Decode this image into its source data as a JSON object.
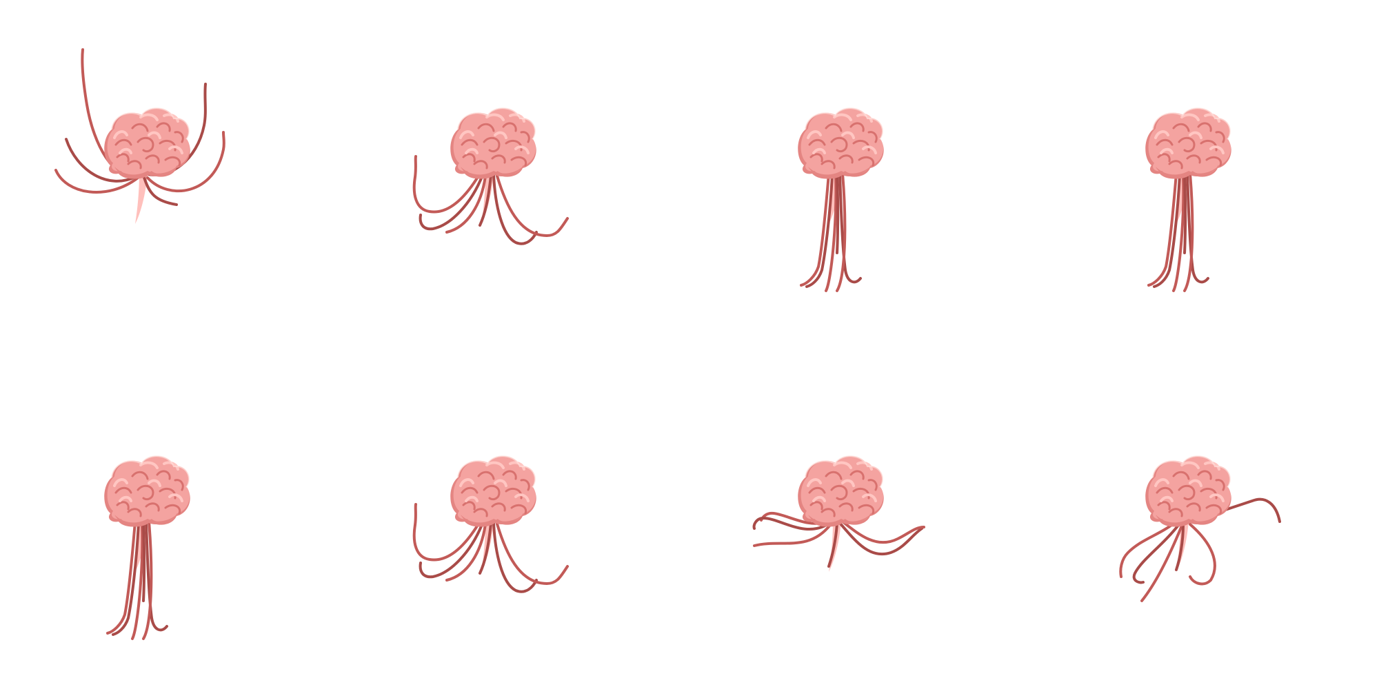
{
  "sprite_sheet": {
    "background": "#ffffff",
    "rows": 2,
    "columns": 4,
    "frame_count": 8,
    "subject": "brain-creature",
    "colors": {
      "brain_base": "#f4a3a0",
      "brain_shadow": "#e48582",
      "brain_fold": "#d8716e",
      "brain_highlight": "#ffc6c2",
      "brain_edge": "#ffe0dc",
      "tentacle": "#c25a57",
      "tentacle_dark": "#a94b48",
      "stem": "#ffc0bc"
    },
    "frames": [
      {
        "index": 1,
        "pose": "tentacles-spread-wide"
      },
      {
        "index": 2,
        "pose": "tentacles-curled-down"
      },
      {
        "index": 3,
        "pose": "tentacles-hanging-straight"
      },
      {
        "index": 4,
        "pose": "tentacles-hanging-straight"
      },
      {
        "index": 5,
        "pose": "tentacles-hanging-straight"
      },
      {
        "index": 6,
        "pose": "tentacles-curled-down"
      },
      {
        "index": 7,
        "pose": "tentacles-sideways-wave"
      },
      {
        "index": 8,
        "pose": "tentacles-reaching-out"
      }
    ]
  }
}
